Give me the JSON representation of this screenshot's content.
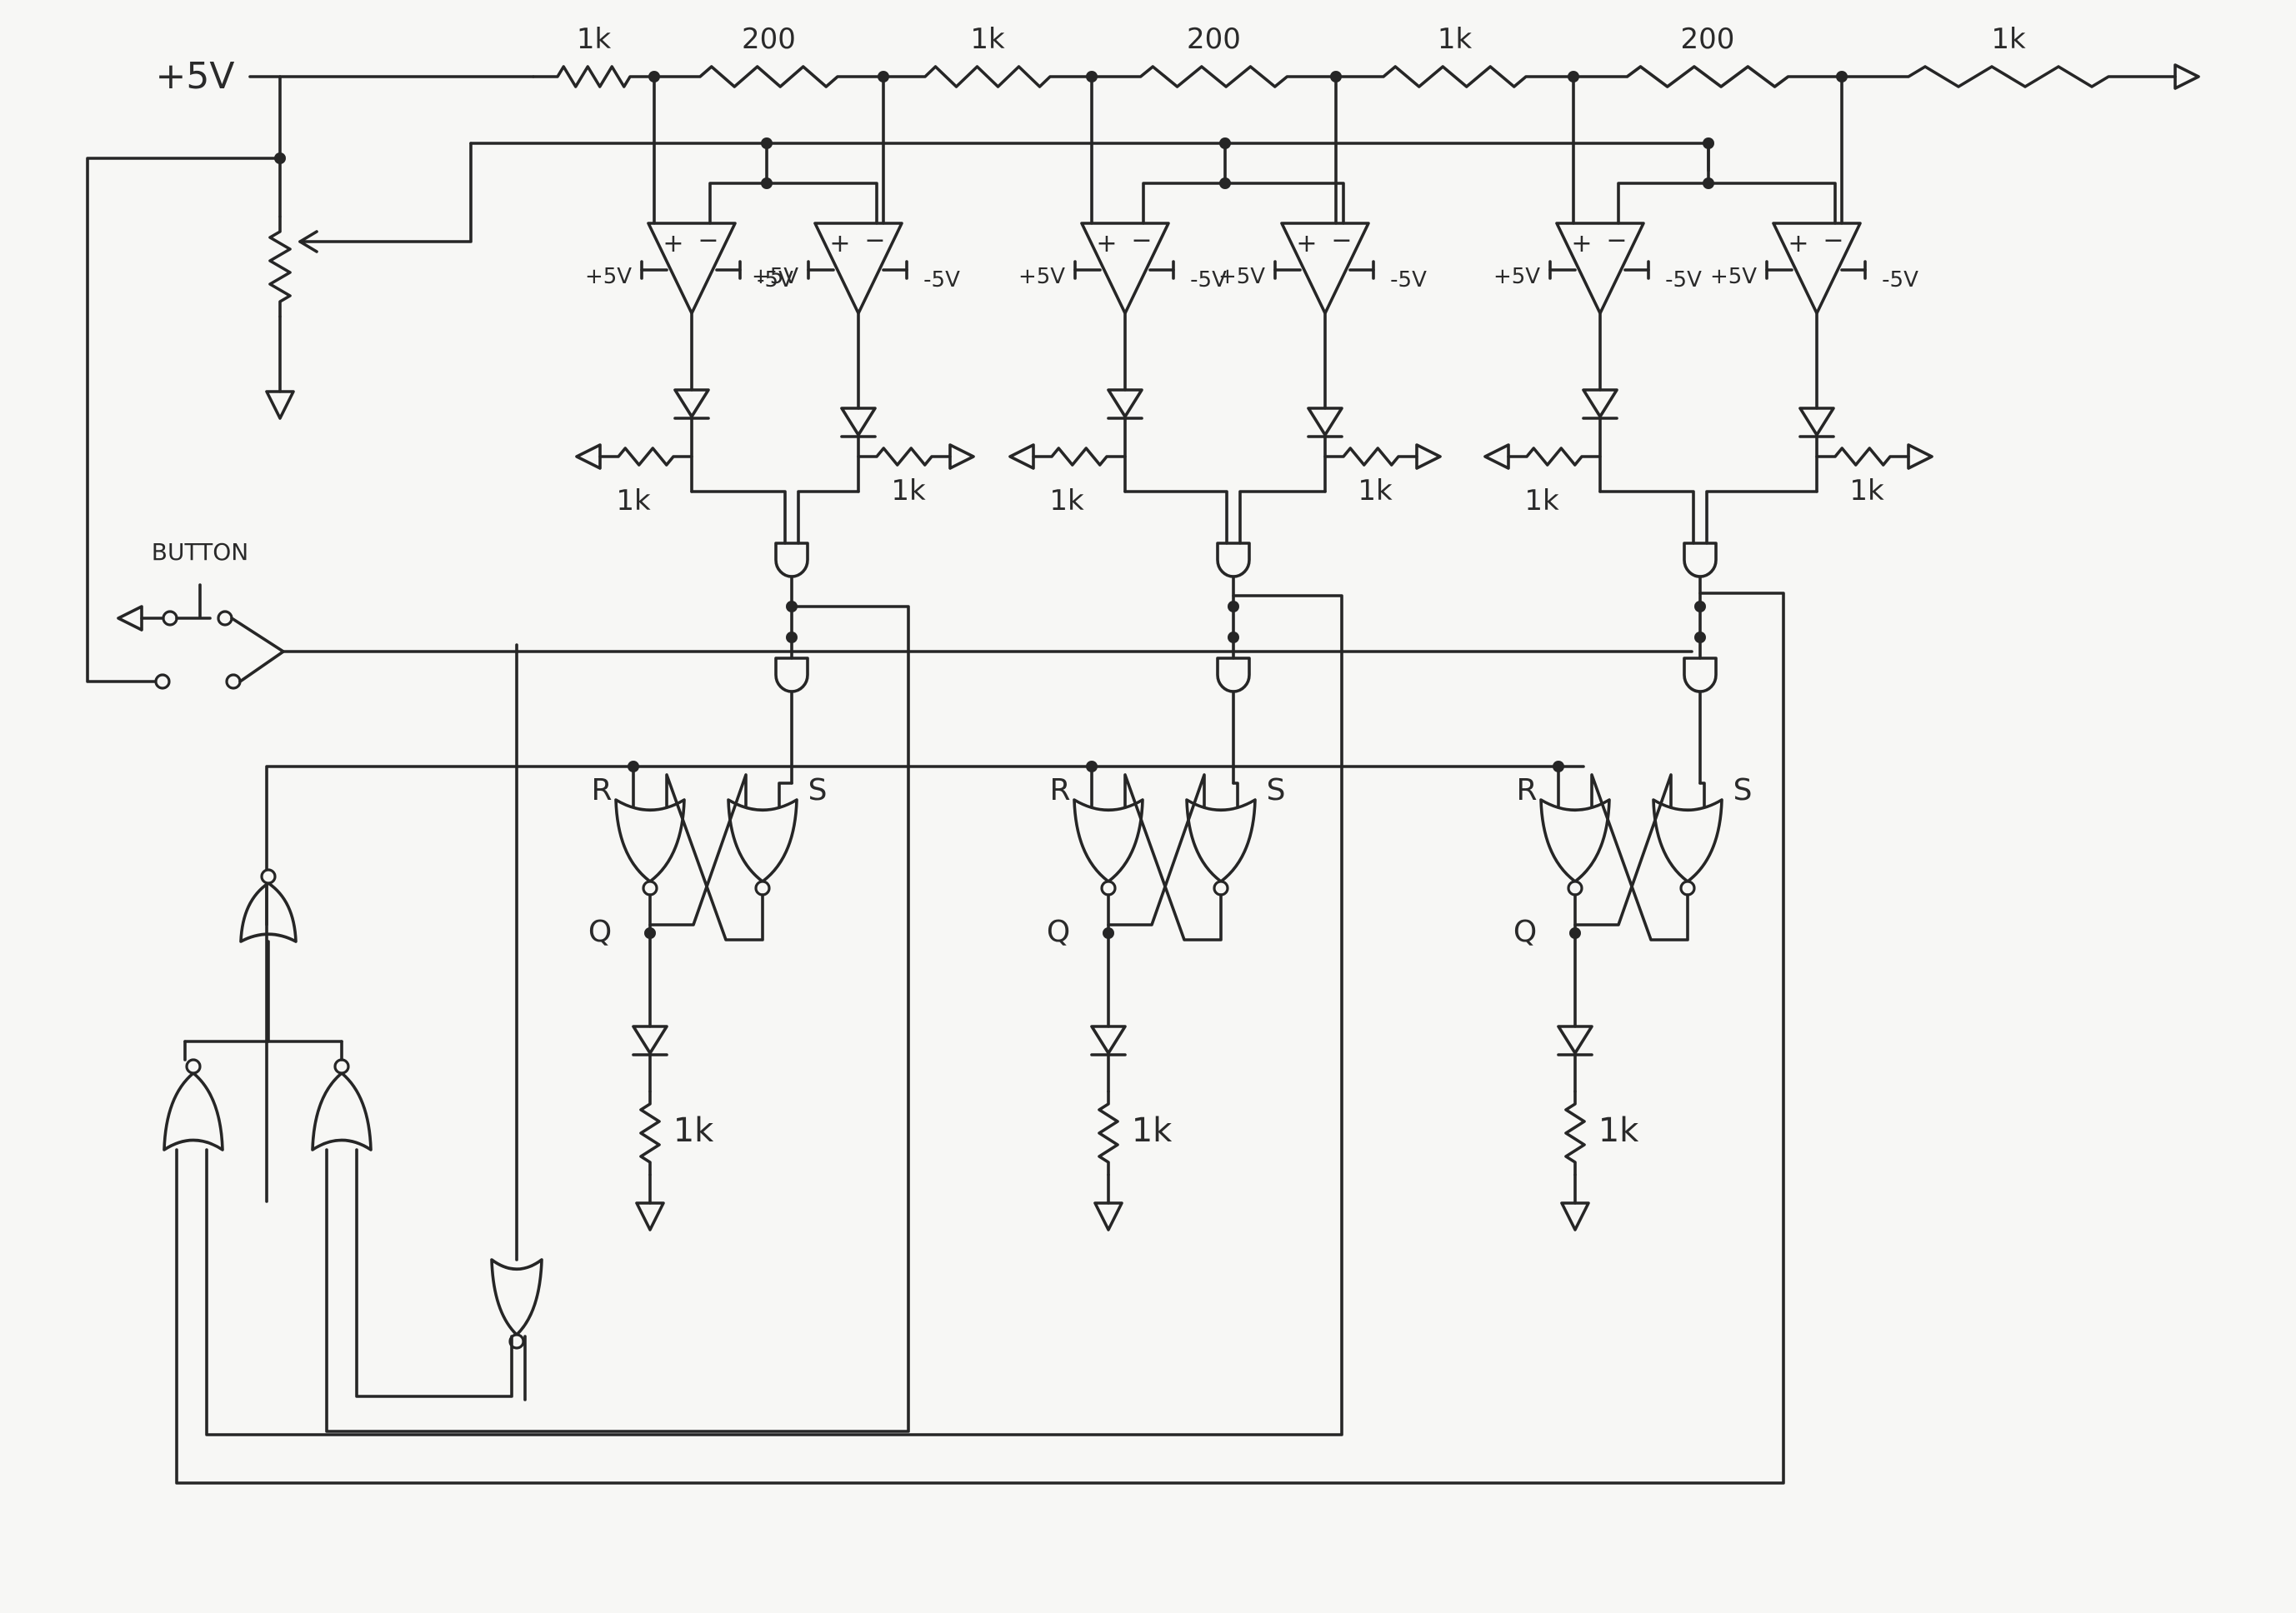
{
  "supply": {
    "vcc_label": "+5V"
  },
  "ladder": {
    "resistors": [
      "1k",
      "200",
      "1k",
      "200",
      "1k",
      "200",
      "1k"
    ]
  },
  "comparators": {
    "positive_supply": "+5V",
    "negative_supply": "-5V",
    "plus_sign": "+",
    "minus_sign": "−"
  },
  "led_resistor_label": "1k",
  "latch_labels": {
    "reset": "R",
    "set": "S",
    "output": "Q"
  },
  "button": {
    "label": "BUTTON"
  }
}
